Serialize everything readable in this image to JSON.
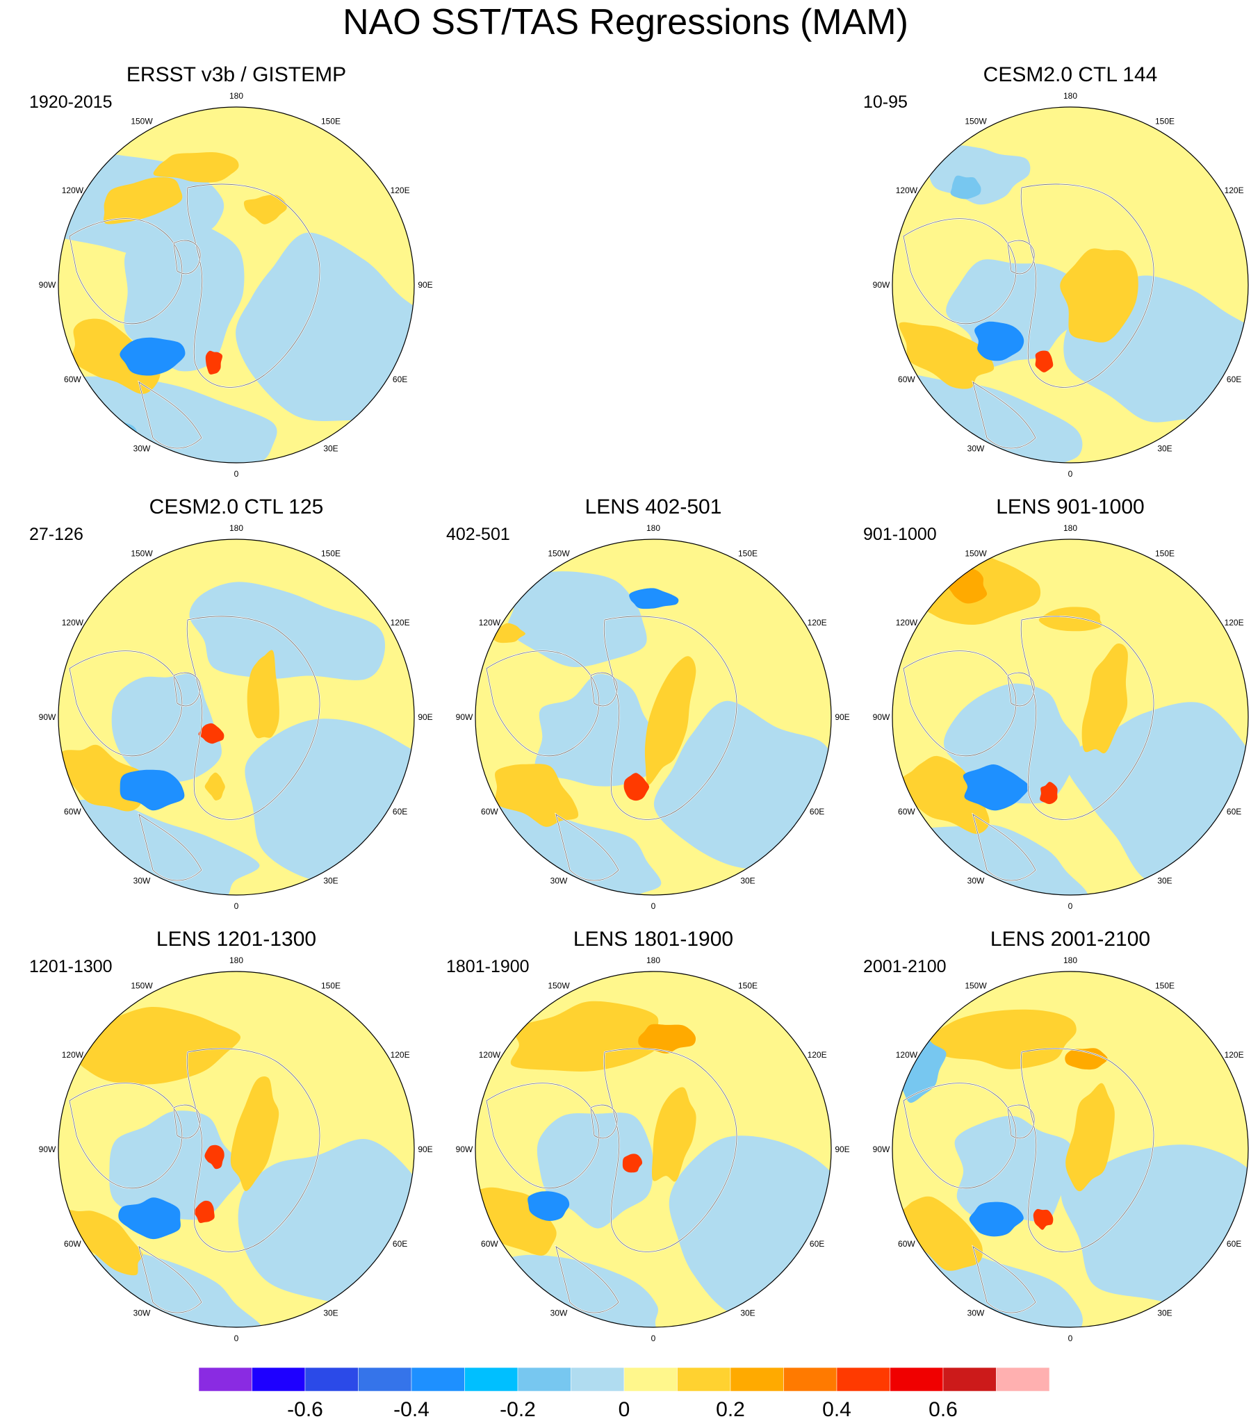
{
  "title": "NAO SST/TAS Regressions (MAM)",
  "longitude_labels": [
    "180",
    "150E",
    "120E",
    "90E",
    "60E",
    "30E",
    "0",
    "30W",
    "60W",
    "90W",
    "120W",
    "150W"
  ],
  "panels": [
    {
      "title": "ERSST v3b / GISTEMP",
      "years": "1920-2015"
    },
    {
      "title": "CESM2.0 CTL 144",
      "years": "10-95"
    },
    {
      "title": "CESM2.0 CTL 125",
      "years": "27-126"
    },
    {
      "title": "LENS 402-501",
      "years": "402-501"
    },
    {
      "title": "LENS 901-1000",
      "years": "901-1000"
    },
    {
      "title": "LENS 1201-1300",
      "years": "1201-1300"
    },
    {
      "title": "LENS 1801-1900",
      "years": "1801-1900"
    },
    {
      "title": "LENS 2001-2100",
      "years": "2001-2100"
    }
  ],
  "colorbar": {
    "colors": [
      "#8a2be2",
      "#1e00ff",
      "#2b4ae8",
      "#3574ea",
      "#1e90ff",
      "#00bfff",
      "#77c7f0",
      "#b0dcf0",
      "#fff78c",
      "#ffd230",
      "#ffaa00",
      "#ff7a00",
      "#ff3a00",
      "#f00000",
      "#cc1a1a",
      "#ffb0b0"
    ],
    "labels": [
      "-0.6",
      "-0.4",
      "-0.2",
      "0",
      "0.2",
      "0.4",
      "0.6"
    ]
  },
  "colors": {
    "land_outline": "#ffffff",
    "coast_outline": "#6e6e6e",
    "neg_light": "#b0dcf0",
    "neg_med": "#77c7f0",
    "neg_strong": "#1e90ff",
    "pos_light": "#fff78c",
    "pos_med": "#ffd230",
    "pos_strong": "#ffaa00",
    "pos_vstrong": "#ff3a00"
  }
}
